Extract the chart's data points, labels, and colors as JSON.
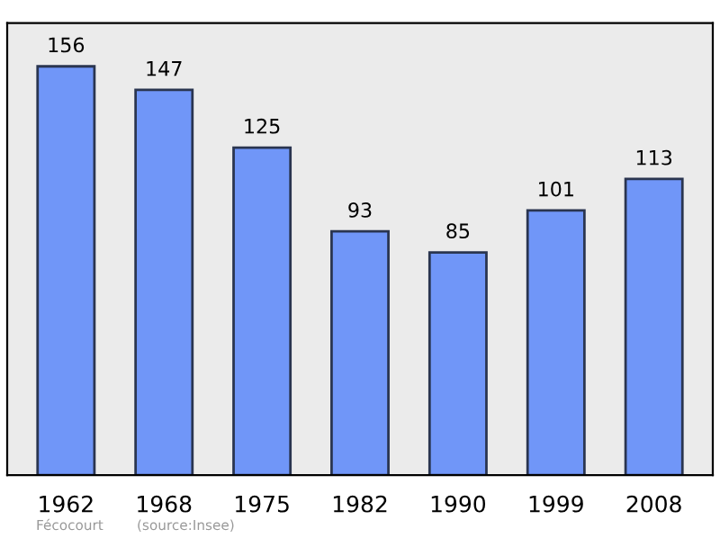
{
  "chart_data": {
    "type": "bar",
    "categories": [
      "1962",
      "1968",
      "1975",
      "1982",
      "1990",
      "1999",
      "2008"
    ],
    "values": [
      156,
      147,
      125,
      93,
      85,
      101,
      113
    ],
    "color": "#7096f8",
    "data_labels": true,
    "ylim": [
      0,
      172.5
    ],
    "tick_labels": "x",
    "grid": false,
    "legend": false,
    "annotations": [
      "Fécocourt",
      "(source:Insee)"
    ]
  }
}
